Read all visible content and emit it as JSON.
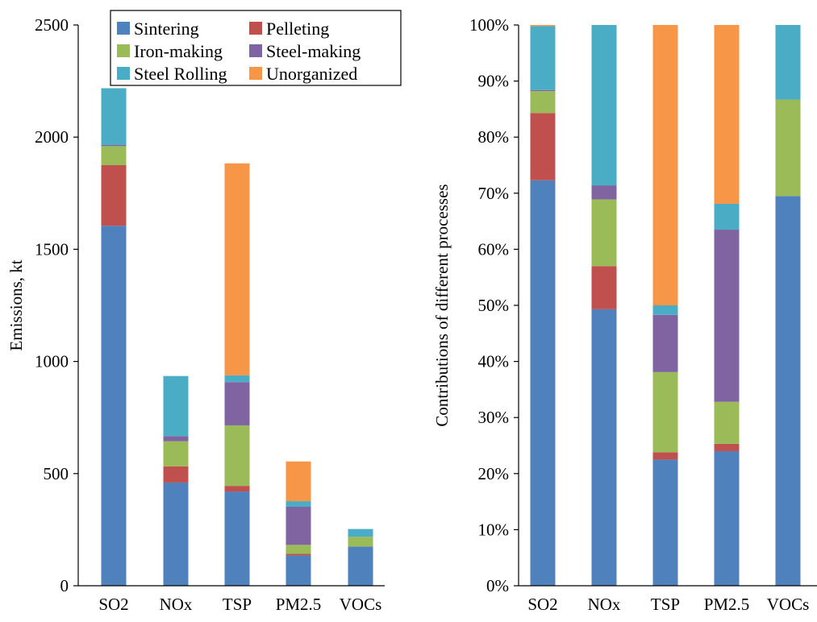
{
  "chart_data": [
    {
      "type": "bar",
      "stacked": true,
      "title": "",
      "xlabel": "",
      "ylabel": "Emissions, kt",
      "ylim": [
        0,
        2500
      ],
      "yticks": [
        0,
        500,
        1000,
        1500,
        2000,
        2500
      ],
      "ytick_labels": [
        "0",
        "500",
        "1000",
        "1500",
        "2000",
        "2500"
      ],
      "grid": false,
      "legend_position": "top-center",
      "categories": [
        "SO2",
        "NOx",
        "TSP",
        "PM2.5",
        "VOCs"
      ],
      "series": [
        {
          "name": "Sintering",
          "color": "#4F81BD",
          "values": [
            1605,
            460,
            420,
            135,
            175
          ]
        },
        {
          "name": "Pelleting",
          "color": "#C0504D",
          "values": [
            270,
            72,
            25,
            7,
            0
          ]
        },
        {
          "name": "Iron-making",
          "color": "#9BBB59",
          "values": [
            85,
            112,
            270,
            40,
            43
          ]
        },
        {
          "name": "Steel-making",
          "color": "#8064A2",
          "values": [
            5,
            23,
            193,
            170,
            0
          ]
        },
        {
          "name": "Steel Rolling",
          "color": "#4BACC6",
          "values": [
            253,
            268,
            30,
            25,
            35
          ]
        },
        {
          "name": "Unorganized",
          "color": "#F79646",
          "values": [
            0,
            0,
            945,
            177,
            0
          ]
        }
      ]
    },
    {
      "type": "bar",
      "stacked": true,
      "title": "",
      "xlabel": "",
      "ylabel": "Contributions of different processes",
      "ylim": [
        0,
        100
      ],
      "yticks": [
        0,
        10,
        20,
        30,
        40,
        50,
        60,
        70,
        80,
        90,
        100
      ],
      "ytick_labels": [
        "0%",
        "10%",
        "20%",
        "30%",
        "40%",
        "50%",
        "60%",
        "70%",
        "80%",
        "90%",
        "100%"
      ],
      "grid": false,
      "categories": [
        "SO2",
        "NOx",
        "TSP",
        "PM2.5",
        "VOCs"
      ],
      "series": [
        {
          "name": "Sintering",
          "color": "#4F81BD",
          "values": [
            72.3,
            49.3,
            22.5,
            24.0,
            69.5
          ]
        },
        {
          "name": "Pelleting",
          "color": "#C0504D",
          "values": [
            12.0,
            7.7,
            1.3,
            1.3,
            0
          ]
        },
        {
          "name": "Iron-making",
          "color": "#9BBB59",
          "values": [
            3.9,
            11.9,
            14.3,
            7.5,
            17.2
          ]
        },
        {
          "name": "Steel-making",
          "color": "#8064A2",
          "values": [
            0.2,
            2.5,
            10.2,
            30.7,
            0
          ]
        },
        {
          "name": "Steel Rolling",
          "color": "#4BACC6",
          "values": [
            11.4,
            28.6,
            1.7,
            4.6,
            13.3
          ]
        },
        {
          "name": "Unorganized",
          "color": "#F79646",
          "values": [
            0.2,
            0,
            50.0,
            31.9,
            0
          ]
        }
      ]
    }
  ]
}
